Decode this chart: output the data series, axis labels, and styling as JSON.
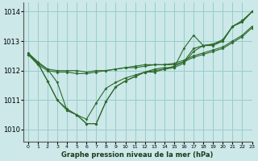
{
  "bg_color": "#cce8e8",
  "grid_color": "#99cccc",
  "line_color": "#2d6a2d",
  "title": "Graphe pression niveau de la mer (hPa)",
  "xlim": [
    -0.5,
    23
  ],
  "ylim": [
    1009.6,
    1014.3
  ],
  "yticks": [
    1010,
    1011,
    1012,
    1013,
    1014
  ],
  "xticks": [
    0,
    1,
    2,
    3,
    4,
    5,
    6,
    7,
    8,
    9,
    10,
    11,
    12,
    13,
    14,
    15,
    16,
    17,
    18,
    19,
    20,
    21,
    22,
    23
  ],
  "series": [
    {
      "x": [
        0,
        1,
        2,
        3,
        4,
        5,
        6,
        7,
        8,
        9,
        10,
        11,
        12,
        13,
        14,
        15,
        16,
        17,
        18,
        19,
        20,
        21,
        22,
        23
      ],
      "y": [
        1012.6,
        1012.25,
        1012.05,
        1012.0,
        1012.0,
        1012.0,
        1011.95,
        1012.0,
        1012.0,
        1012.05,
        1012.1,
        1012.15,
        1012.2,
        1012.2,
        1012.2,
        1012.25,
        1012.35,
        1012.5,
        1012.6,
        1012.7,
        1012.8,
        1013.0,
        1013.2,
        1013.5
      ]
    },
    {
      "x": [
        0,
        1,
        2,
        3,
        4,
        5,
        6,
        7,
        8,
        9,
        10,
        11,
        12,
        13,
        14,
        15,
        16,
        17,
        18,
        19,
        20,
        21,
        22,
        23
      ],
      "y": [
        1012.55,
        1012.2,
        1012.0,
        1011.95,
        1011.95,
        1011.9,
        1011.9,
        1011.95,
        1012.0,
        1012.05,
        1012.1,
        1012.1,
        1012.15,
        1012.2,
        1012.2,
        1012.2,
        1012.3,
        1012.45,
        1012.55,
        1012.65,
        1012.75,
        1012.95,
        1013.15,
        1013.45
      ]
    },
    {
      "x": [
        0,
        1,
        2,
        3,
        4,
        5,
        6,
        7,
        8,
        9,
        10,
        11,
        12,
        13,
        14,
        15,
        16,
        17,
        18,
        19,
        20,
        21,
        22,
        23
      ],
      "y": [
        1012.55,
        1012.25,
        1011.65,
        1011.0,
        1010.7,
        1010.5,
        1010.2,
        1010.2,
        1010.95,
        1011.45,
        1011.65,
        1011.8,
        1011.95,
        1012.0,
        1012.05,
        1012.15,
        1012.3,
        1012.75,
        1012.85,
        1012.9,
        1013.05,
        1013.5,
        1013.7,
        1014.0
      ]
    },
    {
      "x": [
        0,
        1,
        2,
        3,
        4,
        5,
        6,
        7,
        8,
        9,
        10,
        11,
        12,
        13,
        14,
        15,
        16,
        17,
        18,
        19,
        20,
        21,
        22,
        23
      ],
      "y": [
        1012.55,
        1012.25,
        1011.65,
        1011.0,
        1010.65,
        1010.5,
        1010.2,
        1010.2,
        1010.95,
        1011.45,
        1011.65,
        1011.8,
        1011.95,
        1011.95,
        1012.05,
        1012.1,
        1012.25,
        1012.65,
        1012.85,
        1012.9,
        1013.0,
        1013.5,
        1013.65,
        1014.0
      ]
    },
    {
      "x": [
        0,
        1,
        2,
        3,
        4,
        5,
        6,
        7,
        8,
        9,
        10,
        11,
        12,
        13,
        14,
        15,
        16,
        17,
        18,
        19,
        20,
        21,
        22,
        23
      ],
      "y": [
        1012.6,
        1012.3,
        1012.05,
        1011.6,
        1010.65,
        1010.5,
        1010.35,
        1010.9,
        1011.4,
        1011.6,
        1011.75,
        1011.85,
        1011.95,
        1012.05,
        1012.1,
        1012.1,
        1012.75,
        1013.2,
        1012.85,
        1012.85,
        1013.0,
        1013.5,
        1013.65,
        1014.0
      ]
    }
  ]
}
